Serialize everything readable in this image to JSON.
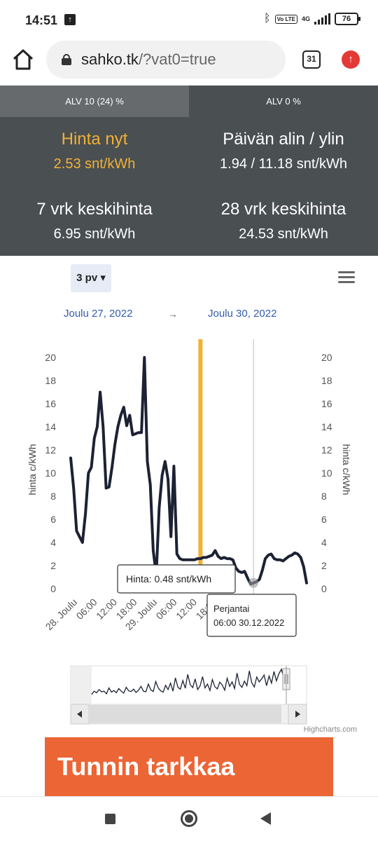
{
  "status": {
    "time": "14:51",
    "battery": "76",
    "network": "4G",
    "volte": "Vo LTE"
  },
  "browser": {
    "url_host": "sahko.tk",
    "url_path": "/?vat0=true",
    "tab_count": "31"
  },
  "vat_tabs": [
    {
      "label": "ALV 10 (24) %"
    },
    {
      "label": "ALV 0 %"
    }
  ],
  "stats": {
    "now_label": "Hinta nyt",
    "now_value": "2.53 snt/kWh",
    "daily_label": "Päivän alin / ylin",
    "daily_value": "1.94 / 11.18 snt/kWh",
    "week_label": "7 vrk keskihinta",
    "week_value": "6.95 snt/kWh",
    "month_label": "28 vrk keskihinta",
    "month_value": "24.53 snt/kWh"
  },
  "range_selector": {
    "label": "3 pv ▾"
  },
  "dates": {
    "from": "Joulu 27, 2022",
    "arrow": "→",
    "to": "Joulu 30, 2022"
  },
  "tooltip": {
    "price": "Hinta: 0.48 snt/kWh",
    "day": "Perjantai",
    "time": "06:00 30.12.2022"
  },
  "credit": "Highcharts.com",
  "ad": {
    "title": "Tunnin tarkkaa"
  },
  "chart_data": {
    "type": "line",
    "ylabel": "hinta c/kWh",
    "y2label": "hinta c/kWh",
    "ylim": [
      0,
      20
    ],
    "yticks": [
      "0",
      "2",
      "4",
      "6",
      "8",
      "10",
      "12",
      "14",
      "16",
      "18",
      "20"
    ],
    "xticks": [
      "28. Joulu",
      "06:00",
      "12:00",
      "18:00",
      "29. Joulu",
      "06:00",
      "12:00",
      "18:00",
      "30"
    ],
    "xlim": [
      0,
      80
    ],
    "now_x": 44,
    "hover_x": 62,
    "series": [
      {
        "color": "#1c2233",
        "x": [
          0,
          1,
          2,
          3,
          4,
          5,
          6,
          7,
          8,
          9,
          10,
          11,
          12,
          13,
          14,
          15,
          16,
          17,
          18,
          19,
          20,
          21,
          22,
          23,
          24,
          25,
          26,
          27,
          28,
          29,
          30,
          31,
          32,
          33,
          34,
          35,
          36,
          37,
          38,
          39,
          40,
          41,
          42,
          43,
          44,
          45,
          46,
          47,
          48,
          49,
          50,
          51,
          52,
          53,
          54,
          55,
          56,
          57,
          58,
          59,
          60,
          61,
          62,
          63,
          64,
          65,
          66,
          67,
          68,
          69,
          70,
          71,
          72,
          73,
          74,
          75,
          76,
          77,
          78,
          79,
          80
        ],
        "values": [
          11.3,
          8.7,
          5,
          4.5,
          4,
          6.5,
          10,
          10.5,
          13,
          14,
          17,
          14,
          8.7,
          8.8,
          10.5,
          12.5,
          14,
          15,
          15.7,
          14.1,
          15,
          13.3,
          13.4,
          13.5,
          13.5,
          20,
          11,
          9,
          3.3,
          1.2,
          7,
          9.8,
          11,
          9.5,
          4.5,
          10.6,
          3,
          2.6,
          2.5,
          2.5,
          2.5,
          2.5,
          2.5,
          2.6,
          2.6,
          2.7,
          2.7,
          2.8,
          2.9,
          3.3,
          2.8,
          2.6,
          2.7,
          2.6,
          2.6,
          2.5,
          1.8,
          1.5,
          1.4,
          1.5,
          0.9,
          0.4,
          0.5,
          0.6,
          0.8,
          1.6,
          2.6,
          2.9,
          3,
          2.6,
          2.5,
          2.5,
          2.4,
          2.6,
          2.8,
          2.9,
          3.1,
          3,
          2.7,
          1.9,
          0.5
        ]
      }
    ],
    "navigator": {
      "color": "#1c2233",
      "values": [
        2,
        3,
        2.5,
        3.5,
        2.8,
        3,
        2.2,
        4,
        2.7,
        3.2,
        2.5,
        3.8,
        3,
        2.4,
        4.2,
        3.1,
        2.9,
        3.6,
        2.6,
        3.3,
        4.5,
        3,
        2.8,
        5.2,
        3.4,
        2.9,
        6,
        4,
        3.1,
        2.7,
        4.8,
        3.5,
        5.5,
        3,
        7.1,
        4.2,
        3.6,
        6.3,
        3.9,
        8.2,
        5,
        4.1,
        6.8,
        3.5,
        4.6,
        7.5,
        4,
        5.2,
        3.2,
        6.6,
        4.4,
        3.7,
        5.8,
        4.9,
        3.3,
        7,
        4.5,
        5.9,
        3.8,
        8.6,
        5.1,
        4.2,
        6.1,
        4.7,
        9.3,
        5.6,
        4.3,
        7.4,
        5.9,
        6.8,
        8,
        4.7,
        7.7,
        5.5,
        9.1,
        6.2,
        8.4,
        9.8,
        7,
        3.5
      ]
    }
  }
}
